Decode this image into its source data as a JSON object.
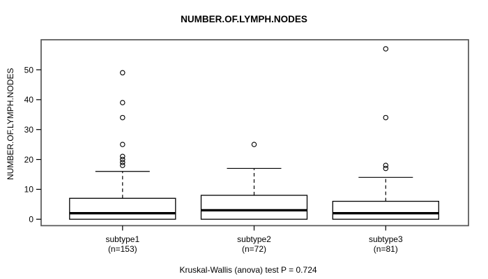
{
  "title": "NUMBER.OF.LYMPH.NODES",
  "colors": {
    "frame": "#555555",
    "box_stroke": "#000000",
    "box_fill": "#ffffff",
    "median": "#000000",
    "background": "#ffffff"
  },
  "chart_data": {
    "type": "boxplot",
    "title": "NUMBER.OF.LYMPH.NODES",
    "ylabel": "NUMBER.OF.LYMPH.NODES",
    "xlabel": "",
    "grid": false,
    "ylim": [
      -2.1,
      60
    ],
    "y_ticks": [
      0,
      10,
      20,
      30,
      40,
      50
    ],
    "categories": [
      "subtype1",
      "subtype2",
      "subtype3"
    ],
    "group_counts": [
      "(n=153)",
      "(n=72)",
      "(n=81)"
    ],
    "series": [
      {
        "name": "subtype1",
        "n": 153,
        "min": 0,
        "q1": 0,
        "median": 2,
        "q3": 7,
        "whisker_low": 0,
        "whisker_high": 16,
        "outliers": [
          18,
          19,
          20,
          21,
          25,
          34,
          39,
          49
        ]
      },
      {
        "name": "subtype2",
        "n": 72,
        "min": 0,
        "q1": 0,
        "median": 3,
        "q3": 8,
        "whisker_low": 0,
        "whisker_high": 17,
        "outliers": [
          25
        ]
      },
      {
        "name": "subtype3",
        "n": 81,
        "min": 0,
        "q1": 0,
        "median": 2,
        "q3": 6,
        "whisker_low": 0,
        "whisker_high": 14,
        "outliers": [
          17,
          18,
          34,
          57
        ]
      }
    ],
    "caption": "Kruskal-Wallis (anova) test P = 0.724"
  }
}
